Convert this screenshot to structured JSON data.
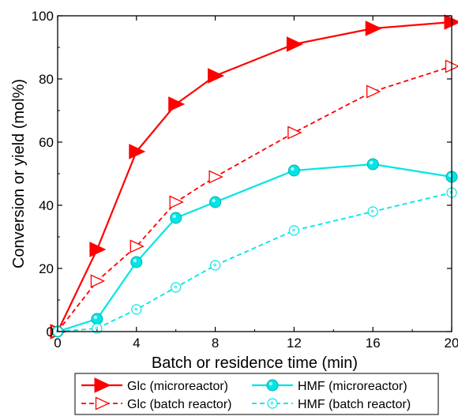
{
  "chart_data": {
    "type": "line",
    "title": "",
    "xlabel": "Batch or residence time (min)",
    "ylabel": "Conversion or yield (mol%)",
    "xlim": [
      0,
      20
    ],
    "ylim": [
      0,
      100
    ],
    "xticks": [
      0,
      4,
      8,
      12,
      16,
      20
    ],
    "yticks": [
      0,
      20,
      40,
      60,
      80,
      100
    ],
    "grid": false,
    "legend_position": "bottom-outside",
    "series": [
      {
        "name": "Glc (microreactor)",
        "color": "#ff0000",
        "line": "solid",
        "marker": "filled-right-triangle",
        "x": [
          0,
          2,
          4,
          6,
          8,
          12,
          16,
          20
        ],
        "y": [
          0,
          26,
          57,
          72,
          81,
          91,
          96,
          98
        ]
      },
      {
        "name": "Glc (batch reactor)",
        "color": "#ff0000",
        "line": "dashed",
        "marker": "open-right-triangle",
        "x": [
          0,
          2,
          4,
          6,
          8,
          12,
          16,
          20
        ],
        "y": [
          0,
          16,
          27,
          41,
          49,
          63,
          76,
          84
        ]
      },
      {
        "name": "HMF (microreactor)",
        "color": "#00e5e5",
        "line": "solid",
        "marker": "filled-circle",
        "x": [
          0,
          2,
          4,
          6,
          8,
          12,
          16,
          20
        ],
        "y": [
          0,
          4,
          22,
          36,
          41,
          51,
          53,
          49
        ]
      },
      {
        "name": "HMF (batch reactor)",
        "color": "#00e5e5",
        "line": "dashed",
        "marker": "open-circle",
        "x": [
          0,
          2,
          4,
          6,
          8,
          12,
          16,
          20
        ],
        "y": [
          0,
          1,
          7,
          14,
          21,
          32,
          38,
          44
        ]
      }
    ]
  }
}
